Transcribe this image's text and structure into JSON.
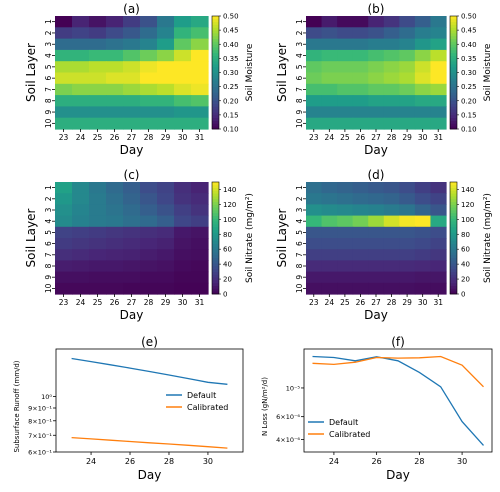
{
  "colors": {
    "default_line": "#1f77b4",
    "calibrated_line": "#ff7f0e",
    "colormap": "viridis"
  },
  "chart_data": [
    {
      "id": "a",
      "type": "heatmap",
      "title": "(a)",
      "xlabel": "Day",
      "ylabel": "Soil Layer",
      "x": [
        "23",
        "24",
        "25",
        "26",
        "27",
        "28",
        "29",
        "30",
        "31"
      ],
      "y": [
        "1",
        "2",
        "3",
        "4",
        "5",
        "6",
        "7",
        "8",
        "9",
        "10"
      ],
      "colorbar": {
        "label": "Soil Moisture",
        "vmin": 0.1,
        "vmax": 0.5,
        "ticks": [
          "0.10",
          "0.15",
          "0.20",
          "0.25",
          "0.30",
          "0.35",
          "0.40",
          "0.45",
          "0.50"
        ]
      },
      "values": [
        [
          0.1,
          0.14,
          0.12,
          0.14,
          0.17,
          0.2,
          0.26,
          0.32,
          0.34
        ],
        [
          0.17,
          0.18,
          0.17,
          0.19,
          0.21,
          0.24,
          0.28,
          0.36,
          0.38
        ],
        [
          0.24,
          0.24,
          0.24,
          0.25,
          0.26,
          0.28,
          0.32,
          0.4,
          0.43
        ],
        [
          0.36,
          0.36,
          0.37,
          0.37,
          0.39,
          0.41,
          0.43,
          0.47,
          0.5
        ],
        [
          0.45,
          0.45,
          0.46,
          0.46,
          0.47,
          0.49,
          0.5,
          0.5,
          0.5
        ],
        [
          0.47,
          0.47,
          0.47,
          0.48,
          0.48,
          0.5,
          0.5,
          0.5,
          0.5
        ],
        [
          0.42,
          0.43,
          0.43,
          0.43,
          0.44,
          0.45,
          0.46,
          0.48,
          0.49
        ],
        [
          0.35,
          0.35,
          0.35,
          0.35,
          0.35,
          0.36,
          0.36,
          0.38,
          0.39
        ],
        [
          0.3,
          0.3,
          0.3,
          0.3,
          0.3,
          0.3,
          0.3,
          0.31,
          0.31
        ],
        [
          0.35,
          0.35,
          0.35,
          0.35,
          0.35,
          0.35,
          0.35,
          0.35,
          0.35
        ]
      ]
    },
    {
      "id": "b",
      "type": "heatmap",
      "title": "(b)",
      "xlabel": "Day",
      "ylabel": "Soil Layer",
      "x": [
        "23",
        "24",
        "25",
        "26",
        "27",
        "28",
        "29",
        "30",
        "31"
      ],
      "y": [
        "1",
        "2",
        "3",
        "4",
        "5",
        "6",
        "7",
        "8",
        "9",
        "10"
      ],
      "colorbar": {
        "label": "Soil Moisture",
        "vmin": 0.1,
        "vmax": 0.5,
        "ticks": [
          "0.10",
          "0.15",
          "0.20",
          "0.25",
          "0.30",
          "0.35",
          "0.40",
          "0.45",
          "0.50"
        ]
      },
      "values": [
        [
          0.1,
          0.13,
          0.11,
          0.11,
          0.14,
          0.16,
          0.19,
          0.22,
          0.26
        ],
        [
          0.19,
          0.2,
          0.19,
          0.19,
          0.2,
          0.22,
          0.24,
          0.27,
          0.28
        ],
        [
          0.26,
          0.26,
          0.26,
          0.26,
          0.27,
          0.27,
          0.28,
          0.31,
          0.33
        ],
        [
          0.36,
          0.37,
          0.37,
          0.37,
          0.38,
          0.39,
          0.4,
          0.43,
          0.46
        ],
        [
          0.4,
          0.41,
          0.41,
          0.41,
          0.42,
          0.43,
          0.44,
          0.47,
          0.5
        ],
        [
          0.41,
          0.42,
          0.42,
          0.42,
          0.43,
          0.44,
          0.45,
          0.48,
          0.5
        ],
        [
          0.38,
          0.38,
          0.39,
          0.39,
          0.4,
          0.4,
          0.41,
          0.43,
          0.44
        ],
        [
          0.32,
          0.32,
          0.32,
          0.32,
          0.33,
          0.33,
          0.33,
          0.34,
          0.34
        ],
        [
          0.28,
          0.28,
          0.28,
          0.28,
          0.28,
          0.28,
          0.28,
          0.28,
          0.28
        ],
        [
          0.34,
          0.34,
          0.34,
          0.34,
          0.34,
          0.34,
          0.34,
          0.34,
          0.34
        ]
      ]
    },
    {
      "id": "c",
      "type": "heatmap",
      "title": "(c)",
      "xlabel": "Day",
      "ylabel": "Soil Layer",
      "x": [
        "23",
        "24",
        "25",
        "26",
        "27",
        "28",
        "29",
        "30",
        "31"
      ],
      "y": [
        "1",
        "2",
        "3",
        "4",
        "5",
        "6",
        "7",
        "8",
        "9",
        "10"
      ],
      "colorbar": {
        "label": "Soil Nitrate (mg/m²)",
        "vmin": 0,
        "vmax": 150,
        "ticks": [
          "0",
          "20",
          "40",
          "60",
          "80",
          "100",
          "120",
          "140"
        ]
      },
      "values": [
        [
          85,
          70,
          60,
          52,
          45,
          35,
          30,
          20,
          15
        ],
        [
          80,
          70,
          62,
          55,
          48,
          40,
          32,
          22,
          18
        ],
        [
          75,
          68,
          62,
          58,
          52,
          45,
          38,
          28,
          22
        ],
        [
          72,
          66,
          62,
          60,
          55,
          52,
          45,
          32,
          28
        ],
        [
          30,
          28,
          26,
          24,
          22,
          20,
          18,
          10,
          8
        ],
        [
          26,
          24,
          22,
          20,
          18,
          16,
          14,
          8,
          6
        ],
        [
          20,
          18,
          16,
          15,
          14,
          12,
          10,
          6,
          5
        ],
        [
          12,
          11,
          10,
          10,
          9,
          8,
          7,
          4,
          3
        ],
        [
          6,
          6,
          5,
          5,
          5,
          4,
          4,
          2,
          2
        ],
        [
          3,
          3,
          3,
          3,
          2,
          2,
          2,
          1,
          1
        ]
      ]
    },
    {
      "id": "d",
      "type": "heatmap",
      "title": "(d)",
      "xlabel": "Day",
      "ylabel": "Soil Layer",
      "x": [
        "23",
        "24",
        "25",
        "26",
        "27",
        "28",
        "29",
        "30",
        "31"
      ],
      "y": [
        "1",
        "2",
        "3",
        "4",
        "5",
        "6",
        "7",
        "8",
        "9",
        "10"
      ],
      "colorbar": {
        "label": "Soil Nitrate (mg/m²)",
        "vmin": 0,
        "vmax": 150,
        "ticks": [
          "0",
          "20",
          "40",
          "60",
          "80",
          "100",
          "120",
          "140"
        ]
      },
      "values": [
        [
          55,
          50,
          48,
          45,
          42,
          40,
          35,
          28,
          22
        ],
        [
          60,
          58,
          55,
          52,
          50,
          48,
          42,
          35,
          30
        ],
        [
          75,
          72,
          70,
          68,
          66,
          62,
          58,
          48,
          40
        ],
        [
          100,
          108,
          112,
          118,
          128,
          140,
          148,
          150,
          90
        ],
        [
          40,
          40,
          40,
          40,
          40,
          40,
          40,
          38,
          35
        ],
        [
          35,
          35,
          35,
          35,
          35,
          35,
          35,
          33,
          30
        ],
        [
          28,
          28,
          28,
          28,
          28,
          28,
          28,
          26,
          24
        ],
        [
          18,
          18,
          18,
          18,
          18,
          18,
          18,
          17,
          16
        ],
        [
          10,
          10,
          10,
          10,
          10,
          10,
          10,
          9,
          9
        ],
        [
          6,
          6,
          6,
          6,
          6,
          6,
          6,
          5,
          5
        ]
      ]
    },
    {
      "id": "e",
      "type": "line",
      "title": "(e)",
      "xlabel": "Day",
      "ylabel": "Subsurface Runoff (mm/d)",
      "yscale": "log",
      "xlim": [
        22.2,
        31.8
      ],
      "ylim": [
        0.6,
        1.55
      ],
      "xticks": [
        "24",
        "26",
        "28",
        "30"
      ],
      "yticks": [
        {
          "value": 1.0,
          "label": "10⁰"
        },
        {
          "value": 0.9,
          "label": "9×10⁻¹"
        },
        {
          "value": 0.8,
          "label": "8×10⁻¹"
        },
        {
          "value": 0.7,
          "label": "7×10⁻¹"
        },
        {
          "value": 0.6,
          "label": "6×10⁻¹"
        }
      ],
      "legend": "center-right",
      "series": [
        {
          "name": "Default",
          "x": [
            23,
            24,
            25,
            26,
            27,
            28,
            29,
            30,
            31
          ],
          "values": [
            1.42,
            1.38,
            1.34,
            1.3,
            1.26,
            1.22,
            1.18,
            1.14,
            1.12
          ]
        },
        {
          "name": "Calibrated",
          "x": [
            23,
            24,
            25,
            26,
            27,
            28,
            29,
            30,
            31
          ],
          "values": [
            0.685,
            0.677,
            0.669,
            0.661,
            0.653,
            0.646,
            0.638,
            0.63,
            0.622
          ]
        }
      ]
    },
    {
      "id": "f",
      "type": "line",
      "title": "(f)",
      "xlabel": "Day",
      "ylabel": "N Loss (gN/m²/d)",
      "yscale": "log",
      "xlim": [
        22.6,
        31.4
      ],
      "ylim": [
        3.2e-06,
        2e-05
      ],
      "xticks": [
        "24",
        "26",
        "28",
        "30"
      ],
      "yticks": [
        {
          "value": 1e-05,
          "label": "10⁻⁵"
        },
        {
          "value": 6e-06,
          "label": "6×10⁻⁶"
        },
        {
          "value": 4e-06,
          "label": "4×10⁻⁶"
        }
      ],
      "legend": "lower-left",
      "series": [
        {
          "name": "Default",
          "x": [
            23,
            24,
            25,
            26,
            27,
            28,
            29,
            30,
            31
          ],
          "values": [
            1.75e-05,
            1.72e-05,
            1.62e-05,
            1.74e-05,
            1.62e-05,
            1.32e-05,
            1.02e-05,
            5.5e-06,
            3.6e-06
          ]
        },
        {
          "name": "Calibrated",
          "x": [
            23,
            24,
            25,
            26,
            27,
            28,
            29,
            30,
            31
          ],
          "values": [
            1.55e-05,
            1.52e-05,
            1.58e-05,
            1.72e-05,
            1.7e-05,
            1.71e-05,
            1.75e-05,
            1.5e-05,
            1.02e-05
          ]
        }
      ]
    }
  ]
}
